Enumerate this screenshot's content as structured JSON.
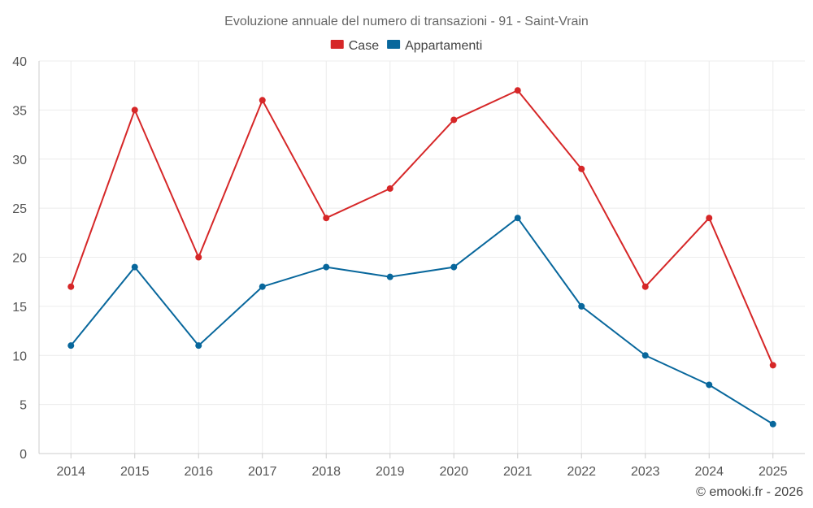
{
  "chart_data": {
    "type": "line",
    "title": "Evoluzione annuale del numero di transazioni - 91 - Saint-Vrain",
    "categories": [
      "2014",
      "2015",
      "2016",
      "2017",
      "2018",
      "2019",
      "2020",
      "2021",
      "2022",
      "2023",
      "2024",
      "2025"
    ],
    "series": [
      {
        "name": "Case",
        "color": "#d62728",
        "values": [
          17,
          35,
          20,
          36,
          24,
          27,
          34,
          37,
          29,
          17,
          24,
          9
        ]
      },
      {
        "name": "Appartamenti",
        "color": "#08679c",
        "values": [
          11,
          19,
          11,
          17,
          19,
          18,
          19,
          24,
          15,
          10,
          7,
          3
        ]
      }
    ],
    "ylim": [
      0,
      40
    ],
    "yticks": [
      0,
      5,
      10,
      15,
      20,
      25,
      30,
      35,
      40
    ],
    "xlabel": "",
    "ylabel": "",
    "grid": true,
    "legend": "top-center"
  },
  "credit": "© emooki.fr - 2026"
}
